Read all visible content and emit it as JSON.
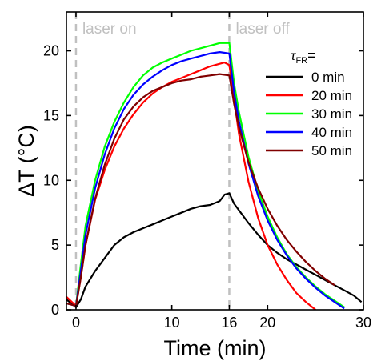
{
  "chart_data": {
    "type": "line",
    "xlabel": "Time (min)",
    "ylabel": "ΔT (°C)",
    "xlim": [
      -1,
      30
    ],
    "ylim": [
      0,
      23
    ],
    "x_ticks": [
      0,
      10,
      16,
      20,
      30
    ],
    "y_ticks": [
      0,
      5,
      10,
      15,
      20
    ],
    "grid": false,
    "legend_position": "right",
    "legend_title": "τ",
    "legend_title_sub": "FR",
    "legend_title_suffix": "=",
    "annotations": [
      {
        "text": "laser on",
        "x": 0
      },
      {
        "text": "laser off",
        "x": 16
      }
    ],
    "vlines": [
      0,
      16
    ],
    "series": [
      {
        "name": "0 min",
        "color": "#000000",
        "x": [
          -1,
          0,
          0.5,
          1,
          2,
          3,
          4,
          5,
          6,
          7,
          8,
          9,
          10,
          11,
          12,
          13,
          14,
          15,
          15.5,
          16,
          16.5,
          17,
          18,
          19,
          20,
          21,
          22,
          23,
          24,
          25,
          26,
          27,
          28,
          29,
          29.8
        ],
        "y": [
          0.8,
          0.2,
          0.8,
          1.8,
          3.0,
          4.0,
          5.0,
          5.6,
          6.0,
          6.3,
          6.6,
          6.9,
          7.2,
          7.5,
          7.8,
          8.0,
          8.1,
          8.4,
          8.9,
          9.0,
          8.2,
          7.7,
          6.7,
          5.8,
          5.0,
          4.4,
          3.9,
          3.5,
          3.1,
          2.7,
          2.3,
          1.9,
          1.5,
          1.1,
          0.6
        ]
      },
      {
        "name": "20 min",
        "color": "#ff0000",
        "x": [
          -1,
          0,
          0.5,
          1,
          2,
          3,
          4,
          5,
          6,
          7,
          8,
          9,
          10,
          11,
          12,
          13,
          14,
          15,
          15.5,
          16,
          16.5,
          17,
          18,
          19,
          20,
          21,
          22,
          23,
          24,
          25
        ],
        "y": [
          1.0,
          0.3,
          2.5,
          5.0,
          8.5,
          10.8,
          12.6,
          14.0,
          15.1,
          16.0,
          16.7,
          17.2,
          17.6,
          17.9,
          18.2,
          18.5,
          18.8,
          19.0,
          19.1,
          18.9,
          16.3,
          13.6,
          9.9,
          7.1,
          5.0,
          3.5,
          2.3,
          1.3,
          0.6,
          0.0
        ]
      },
      {
        "name": "30 min",
        "color": "#00ff00",
        "x": [
          -1,
          0,
          0.5,
          1,
          2,
          3,
          4,
          5,
          6,
          7,
          8,
          9,
          10,
          11,
          12,
          13,
          14,
          15,
          16,
          16.5,
          17,
          18,
          19,
          20,
          21,
          22,
          23,
          24,
          25,
          26,
          27,
          28
        ],
        "y": [
          0.5,
          0.3,
          3.5,
          6.5,
          10.0,
          12.6,
          14.5,
          16.0,
          17.2,
          18.1,
          18.7,
          19.1,
          19.4,
          19.7,
          20.0,
          20.2,
          20.4,
          20.6,
          20.6,
          17.5,
          15.3,
          11.8,
          9.2,
          7.2,
          5.6,
          4.3,
          3.3,
          2.5,
          1.8,
          1.2,
          0.7,
          0.2
        ]
      },
      {
        "name": "40 min",
        "color": "#0000ff",
        "x": [
          -1,
          0,
          0.5,
          1,
          2,
          3,
          4,
          5,
          6,
          7,
          8,
          9,
          10,
          11,
          12,
          13,
          14,
          15,
          16,
          16.5,
          17,
          18,
          19,
          20,
          21,
          22,
          23,
          24,
          25,
          26,
          27,
          28
        ],
        "y": [
          0.5,
          0.3,
          3.0,
          5.8,
          9.4,
          12.0,
          14.0,
          15.5,
          16.6,
          17.4,
          18.0,
          18.5,
          18.9,
          19.2,
          19.4,
          19.6,
          19.8,
          19.9,
          19.8,
          16.8,
          14.6,
          11.3,
          8.8,
          6.9,
          5.4,
          4.2,
          3.2,
          2.4,
          1.7,
          1.1,
          0.6,
          0.1
        ]
      },
      {
        "name": "50 min",
        "color": "#800000",
        "x": [
          -1,
          0,
          0.5,
          1,
          2,
          3,
          4,
          5,
          6,
          7,
          8,
          9,
          10,
          11,
          12,
          13,
          14,
          15,
          16,
          16.5,
          17,
          18,
          19,
          20,
          21,
          22,
          23,
          24,
          25,
          26,
          27
        ],
        "y": [
          0.5,
          0.3,
          2.5,
          5.0,
          8.6,
          11.2,
          13.2,
          14.7,
          15.7,
          16.4,
          16.9,
          17.2,
          17.5,
          17.7,
          17.8,
          18.0,
          18.1,
          18.2,
          18.1,
          15.9,
          14.1,
          11.4,
          9.4,
          7.8,
          6.5,
          5.4,
          4.5,
          3.7,
          3.0,
          2.4,
          1.9
        ]
      }
    ]
  }
}
